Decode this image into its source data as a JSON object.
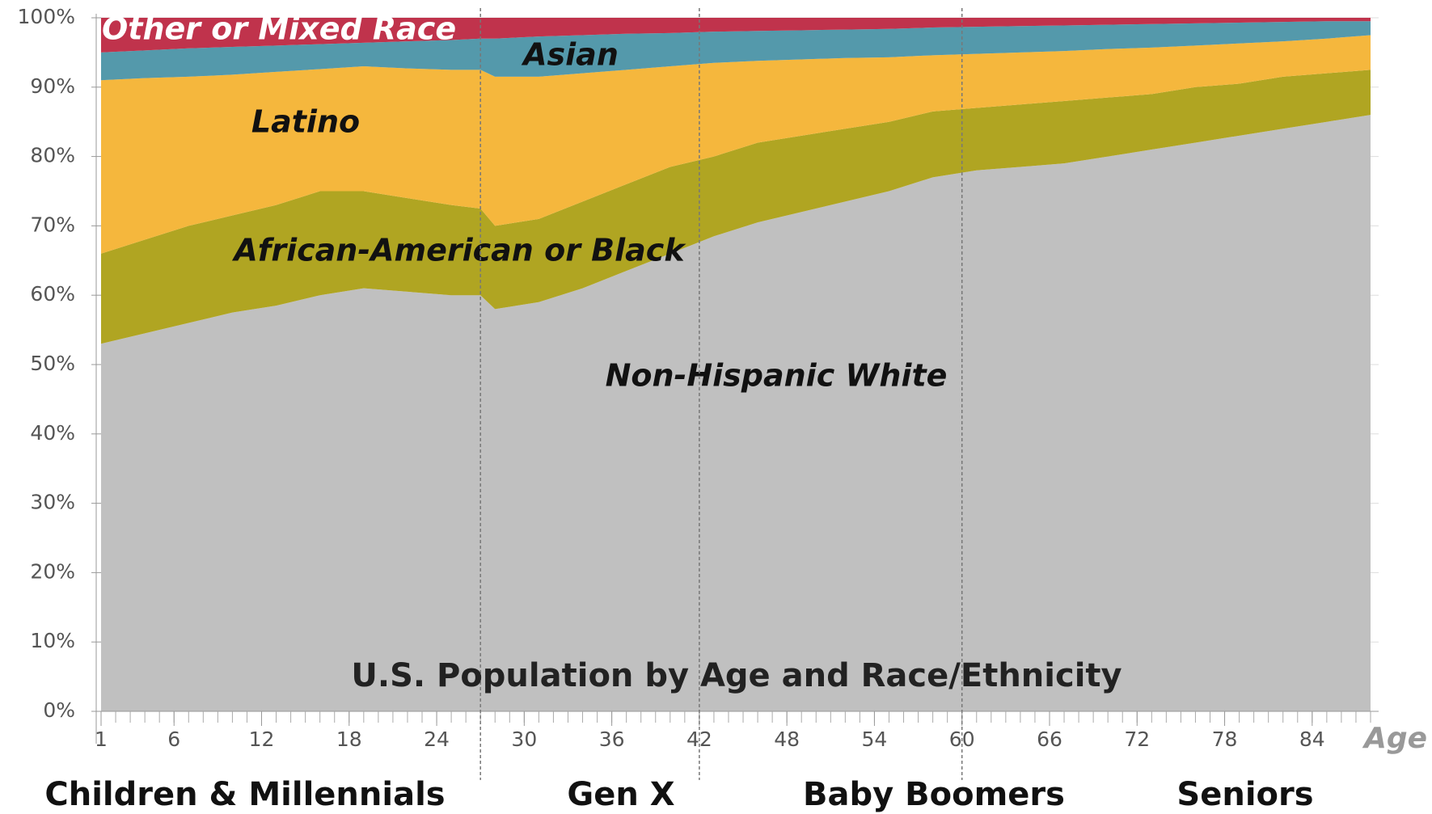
{
  "chart_data": {
    "type": "stacked_area",
    "title": "U.S. Population by Age and Race/Ethnicity",
    "x_label": "Age",
    "x": [
      1,
      4,
      7,
      10,
      13,
      16,
      19,
      22,
      25,
      27,
      28,
      31,
      34,
      37,
      40,
      43,
      46,
      49,
      52,
      55,
      58,
      61,
      64,
      67,
      70,
      73,
      76,
      79,
      82,
      85,
      88
    ],
    "series": [
      {
        "name": "Non-Hispanic White",
        "color": "#c0c0c0",
        "values": [
          53,
          54.5,
          56,
          57.5,
          58.5,
          60,
          61,
          60.5,
          60,
          60,
          58,
          59,
          61,
          63.5,
          66,
          68.5,
          70.5,
          72,
          73.5,
          75,
          77,
          78,
          78.5,
          79,
          80,
          81,
          82,
          83,
          84,
          85,
          86
        ]
      },
      {
        "name": "African-American or Black",
        "color": "#b0a522",
        "values": [
          13,
          13.5,
          14,
          14,
          14.5,
          15,
          14,
          13.5,
          13,
          12.5,
          12,
          12,
          12.5,
          12.5,
          12.5,
          11.5,
          11.5,
          11,
          10.5,
          10,
          9.5,
          9,
          9,
          9,
          8.5,
          8,
          8,
          7.5,
          7.5,
          7,
          6.5
        ]
      },
      {
        "name": "Latino",
        "color": "#f5b73d",
        "values": [
          25,
          23.3,
          21.5,
          20.3,
          19.2,
          17.6,
          18,
          18.7,
          19.5,
          20,
          21.5,
          20.5,
          18.5,
          16.5,
          14.5,
          13.5,
          11.8,
          11,
          10.2,
          9.3,
          8.1,
          7.8,
          7.5,
          7.2,
          7,
          6.7,
          6,
          5.8,
          5.1,
          5,
          5
        ]
      },
      {
        "name": "Asian",
        "color": "#5499ab",
        "values": [
          4,
          4,
          4.1,
          4,
          3.8,
          3.6,
          3.4,
          3.9,
          4.3,
          4.5,
          5.5,
          5.8,
          5.5,
          5.2,
          4.8,
          4.5,
          4.3,
          4.2,
          4.1,
          4.1,
          4,
          3.9,
          3.8,
          3.7,
          3.5,
          3.4,
          3.2,
          3,
          2.8,
          2.5,
          2
        ]
      },
      {
        "name": "Other or Mixed Race",
        "color": "#c0334c",
        "values": [
          5,
          4.7,
          4.4,
          4.2,
          4,
          3.8,
          3.6,
          3.4,
          3.2,
          3,
          3,
          2.7,
          2.5,
          2.3,
          2.2,
          2,
          1.9,
          1.8,
          1.7,
          1.6,
          1.4,
          1.3,
          1.2,
          1.1,
          1,
          0.9,
          0.8,
          0.7,
          0.6,
          0.5,
          0.5
        ]
      }
    ],
    "xlim": [
      1,
      88
    ],
    "xticks": [
      1,
      6,
      12,
      18,
      24,
      30,
      36,
      42,
      48,
      54,
      60,
      66,
      72,
      78,
      84
    ],
    "ylim": [
      0,
      100
    ],
    "yticks": [
      {
        "value": 0,
        "label": "0%"
      },
      {
        "value": 10,
        "label": "10%"
      },
      {
        "value": 20,
        "label": "20%"
      },
      {
        "value": 30,
        "label": "30%"
      },
      {
        "value": 40,
        "label": "40%"
      },
      {
        "value": 50,
        "label": "50%"
      },
      {
        "value": 60,
        "label": "60%"
      },
      {
        "value": 70,
        "label": "70%"
      },
      {
        "value": 80,
        "label": "80%"
      },
      {
        "value": 90,
        "label": "90%"
      },
      {
        "value": 100,
        "label": "100%"
      }
    ],
    "grid": true,
    "dividers": [
      27,
      42,
      60
    ],
    "groups": [
      "Children & Millennials",
      "Gen X",
      "Baby Boomers",
      "Seniors"
    ]
  }
}
